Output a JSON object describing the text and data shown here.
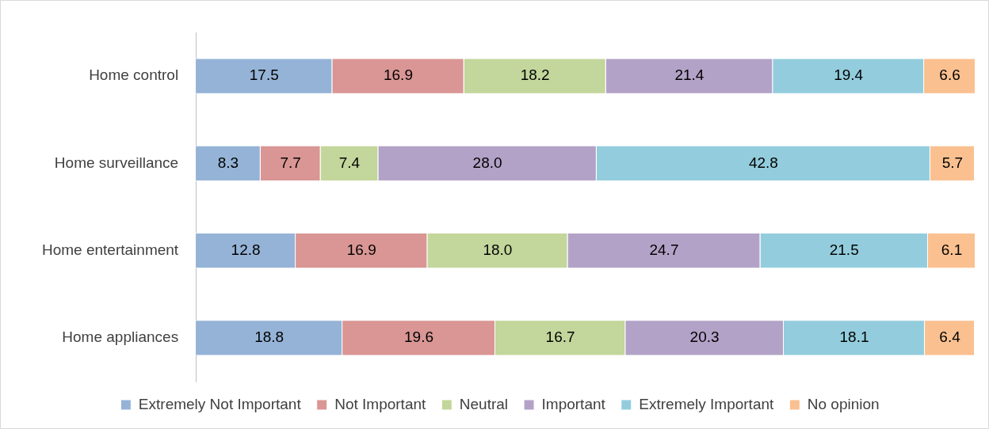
{
  "chart_data": {
    "type": "bar",
    "orientation": "horizontal",
    "stacked": true,
    "legend": "bottom",
    "categories": [
      "Home control",
      "Home surveillance",
      "Home entertainment",
      "Home appliances"
    ],
    "series": [
      {
        "name": "Extremely Not Important",
        "color": "#95b3d7",
        "values": [
          17.5,
          8.3,
          12.8,
          18.8
        ],
        "value_labels": [
          "17.5",
          "8.3",
          "12.8",
          "18.8"
        ]
      },
      {
        "name": "Not Important",
        "color": "#d99694",
        "values": [
          16.9,
          7.7,
          16.9,
          19.6
        ],
        "value_labels": [
          "16.9",
          "7.7",
          "16.9",
          "19.6"
        ]
      },
      {
        "name": "Neutral",
        "color": "#c3d69b",
        "values": [
          18.2,
          7.4,
          18.0,
          16.7
        ],
        "value_labels": [
          "18.2",
          "7.4",
          "18.0",
          "16.7"
        ]
      },
      {
        "name": "Important",
        "color": "#b3a2c7",
        "values": [
          21.4,
          28.0,
          24.7,
          20.3
        ],
        "value_labels": [
          "21.4",
          "28.0",
          "24.7",
          "20.3"
        ]
      },
      {
        "name": "Extremely Important",
        "color": "#93cddd",
        "values": [
          19.4,
          42.8,
          21.5,
          18.1
        ],
        "value_labels": [
          "19.4",
          "42.8",
          "21.5",
          "18.1"
        ]
      },
      {
        "name": "No opinion",
        "color": "#fac090",
        "values": [
          6.6,
          5.7,
          6.1,
          6.4
        ],
        "value_labels": [
          "6.6",
          "5.7",
          "6.1",
          "6.4"
        ]
      }
    ]
  }
}
